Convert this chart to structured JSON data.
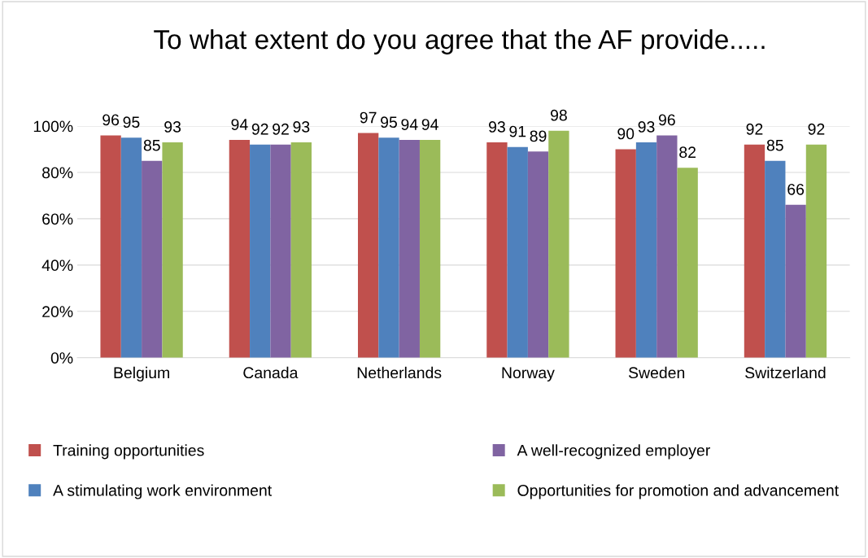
{
  "chart_data": {
    "type": "bar",
    "title": "To what extent do you agree that the AF provide.....",
    "categories": [
      "Belgium",
      "Canada",
      "Netherlands",
      "Norway",
      "Sweden",
      "Switzerland"
    ],
    "series": [
      {
        "name": "Training opportunities",
        "color": "#c0504d",
        "values": [
          96,
          94,
          97,
          93,
          90,
          92
        ]
      },
      {
        "name": "A stimulating work environment",
        "color": "#4f81bd",
        "values": [
          95,
          92,
          95,
          91,
          93,
          85
        ]
      },
      {
        "name": "A well-recognized employer",
        "color": "#8064a2",
        "values": [
          85,
          92,
          94,
          89,
          96,
          66
        ]
      },
      {
        "name": "Opportunities for promotion and advancement",
        "color": "#9bbb59",
        "values": [
          93,
          93,
          94,
          98,
          82,
          92
        ]
      }
    ],
    "ylim": [
      0,
      100
    ],
    "yticks": [
      {
        "value": 0,
        "label": "0%"
      },
      {
        "value": 20,
        "label": "20%"
      },
      {
        "value": 40,
        "label": "40%"
      },
      {
        "value": 60,
        "label": "60%"
      },
      {
        "value": 80,
        "label": "80%"
      },
      {
        "value": 100,
        "label": "100%"
      }
    ],
    "grid": "y",
    "legend": "bottom",
    "data_labels": true
  }
}
